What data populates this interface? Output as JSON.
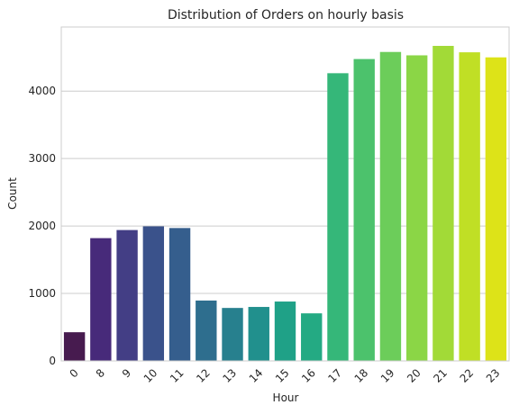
{
  "chart_data": {
    "type": "bar",
    "title": "Distribution of Orders on hourly basis",
    "xlabel": "Hour",
    "ylabel": "Count",
    "categories": [
      "0",
      "8",
      "9",
      "10",
      "11",
      "12",
      "13",
      "14",
      "15",
      "16",
      "17",
      "18",
      "19",
      "20",
      "21",
      "22",
      "23"
    ],
    "values": [
      425,
      1820,
      1940,
      1995,
      1970,
      895,
      785,
      800,
      880,
      705,
      4265,
      4475,
      4580,
      4530,
      4670,
      4575,
      4500
    ],
    "ylim": [
      0,
      4950
    ],
    "yticks": [
      0,
      1000,
      2000,
      3000,
      4000
    ],
    "grid": "horizontal",
    "legend": "none",
    "palette": "viridis",
    "colors": [
      "#471b4f",
      "#472a7a",
      "#433e85",
      "#3a528b",
      "#355e8d",
      "#2e6e8e",
      "#27808e",
      "#21908d",
      "#1fa187",
      "#24aa83",
      "#35b779",
      "#4cc26c",
      "#6ccd5a",
      "#8bd646",
      "#a2da37",
      "#c0df25",
      "#dde318"
    ]
  }
}
